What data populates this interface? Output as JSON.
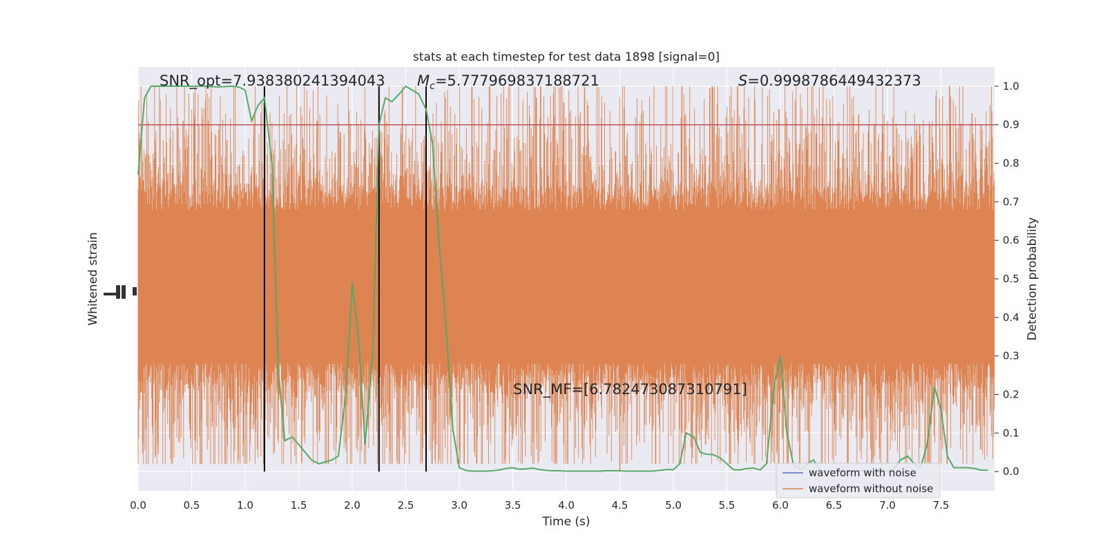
{
  "chart_data": {
    "type": "line",
    "title": "stats at each timestep for test data 1898 [signal=0]",
    "xlabel": "Time (s)",
    "ylabel_left": "Whitened strain",
    "ylabel_right": "Detection probability",
    "xlim": [
      0.0,
      8.0
    ],
    "ylim_right": [
      -0.05,
      1.05
    ],
    "x_ticks": [
      "0.0",
      "0.5",
      "1.0",
      "1.5",
      "2.0",
      "2.5",
      "3.0",
      "3.5",
      "4.0",
      "4.5",
      "5.0",
      "5.5",
      "6.0",
      "6.5",
      "7.0",
      "7.5"
    ],
    "y_ticks_right": [
      "0.0",
      "0.1",
      "0.2",
      "0.3",
      "0.4",
      "0.5",
      "0.6",
      "0.7",
      "0.8",
      "0.9",
      "1.0"
    ],
    "grid": true,
    "legend_placement": "bottom-right",
    "legend": [
      {
        "label": "waveform with noise",
        "color": "#4c72b0"
      },
      {
        "label": "waveform without noise",
        "color": "#dd8452"
      }
    ],
    "annotations": {
      "snr_opt": "SNR_opt=7.938380241394043",
      "mc_symbol": "M",
      "mc_sub": "c",
      "mc_value": "=5.777969837188721",
      "s_symbol": "S",
      "s_value": "=0.9998786449432373",
      "snr_mf": "SNR_MF=[6.782473087310791]"
    },
    "threshold": 0.9,
    "vertical_lines": [
      1.18,
      2.25,
      2.69
    ],
    "probability_series": {
      "name": "Detection probability",
      "color": "#55a868",
      "x": [
        0.0,
        0.06,
        0.12,
        0.19,
        0.25,
        0.31,
        0.37,
        0.44,
        0.5,
        0.56,
        0.62,
        0.69,
        0.75,
        0.81,
        0.87,
        0.94,
        1.0,
        1.06,
        1.12,
        1.18,
        1.25,
        1.31,
        1.37,
        1.44,
        1.5,
        1.56,
        1.62,
        1.69,
        1.75,
        1.81,
        1.87,
        1.94,
        2.0,
        2.06,
        2.12,
        2.19,
        2.25,
        2.31,
        2.37,
        2.44,
        2.5,
        2.56,
        2.62,
        2.69,
        2.75,
        2.81,
        2.87,
        2.94,
        3.0,
        3.06,
        3.12,
        3.19,
        3.25,
        3.31,
        3.37,
        3.44,
        3.5,
        3.56,
        3.62,
        3.69,
        3.75,
        3.81,
        3.87,
        3.94,
        4.0,
        4.06,
        4.12,
        4.19,
        4.25,
        4.31,
        4.37,
        4.44,
        4.5,
        4.56,
        4.62,
        4.69,
        4.75,
        4.81,
        4.87,
        4.94,
        5.0,
        5.06,
        5.12,
        5.19,
        5.25,
        5.31,
        5.37,
        5.44,
        5.5,
        5.56,
        5.62,
        5.69,
        5.75,
        5.81,
        5.87,
        5.94,
        6.0,
        6.06,
        6.12,
        6.19,
        6.25,
        6.31,
        6.37,
        6.44,
        6.5,
        6.56,
        6.62,
        6.69,
        6.75,
        6.81,
        6.87,
        6.94,
        7.0,
        7.06,
        7.12,
        7.19,
        7.25,
        7.31,
        7.37,
        7.44,
        7.5,
        7.56,
        7.62,
        7.69,
        7.75,
        7.81,
        7.87,
        7.94
      ],
      "y": [
        0.77,
        0.97,
        1.0,
        1.0,
        1.0,
        1.0,
        1.0,
        1.0,
        1.0,
        1.0,
        1.0,
        0.999,
        0.998,
        0.999,
        1.0,
        0.998,
        0.99,
        0.91,
        0.95,
        0.97,
        0.8,
        0.26,
        0.08,
        0.09,
        0.07,
        0.05,
        0.03,
        0.02,
        0.025,
        0.03,
        0.04,
        0.2,
        0.49,
        0.34,
        0.07,
        0.3,
        0.9,
        0.97,
        0.96,
        0.98,
        1.0,
        0.99,
        0.98,
        0.94,
        0.85,
        0.6,
        0.4,
        0.11,
        0.01,
        0.003,
        0.001,
        0.001,
        0.001,
        0.002,
        0.004,
        0.008,
        0.01,
        0.006,
        0.007,
        0.009,
        0.005,
        0.003,
        0.002,
        0.002,
        0.001,
        0.001,
        0.001,
        0.001,
        0.001,
        0.001,
        0.002,
        0.002,
        0.002,
        0.001,
        0.001,
        0.001,
        0.001,
        0.001,
        0.003,
        0.005,
        0.005,
        0.02,
        0.1,
        0.09,
        0.05,
        0.045,
        0.044,
        0.035,
        0.02,
        0.005,
        0.004,
        0.008,
        0.009,
        0.004,
        0.02,
        0.22,
        0.3,
        0.1,
        0.02,
        0.003,
        0.02,
        0.03,
        0.002,
        0.002,
        0.002,
        0.002,
        0.002,
        0.002,
        0.002,
        0.002,
        0.002,
        0.002,
        0.002,
        0.005,
        0.03,
        0.04,
        0.02,
        0.01,
        0.07,
        0.22,
        0.16,
        0.04,
        0.01,
        0.01,
        0.01,
        0.008,
        0.004,
        0.003
      ]
    },
    "strain_series": {
      "name": "waveform without noise",
      "color": "#dd8452",
      "envelope_typical_probability_units": [
        0.23,
        0.73
      ],
      "peaks": [
        {
          "x": 0.42,
          "top": 0.91,
          "bottom": 0.2
        },
        {
          "x": 0.83,
          "top": 0.86,
          "bottom": 0.18
        },
        {
          "x": 1.08,
          "top": 0.87,
          "bottom": 0.15
        },
        {
          "x": 1.67,
          "top": 0.91,
          "bottom": 0.1
        },
        {
          "x": 3.72,
          "top": 0.97,
          "bottom": 0.1
        },
        {
          "x": 4.5,
          "top": 0.72,
          "bottom": 0.0
        },
        {
          "x": 5.08,
          "top": 1.0,
          "bottom": 0.1
        },
        {
          "x": 5.3,
          "top": 0.82,
          "bottom": 0.07
        },
        {
          "x": 6.18,
          "top": 0.85,
          "bottom": 0.01
        },
        {
          "x": 7.79,
          "top": 0.93,
          "bottom": 0.12
        }
      ]
    }
  }
}
